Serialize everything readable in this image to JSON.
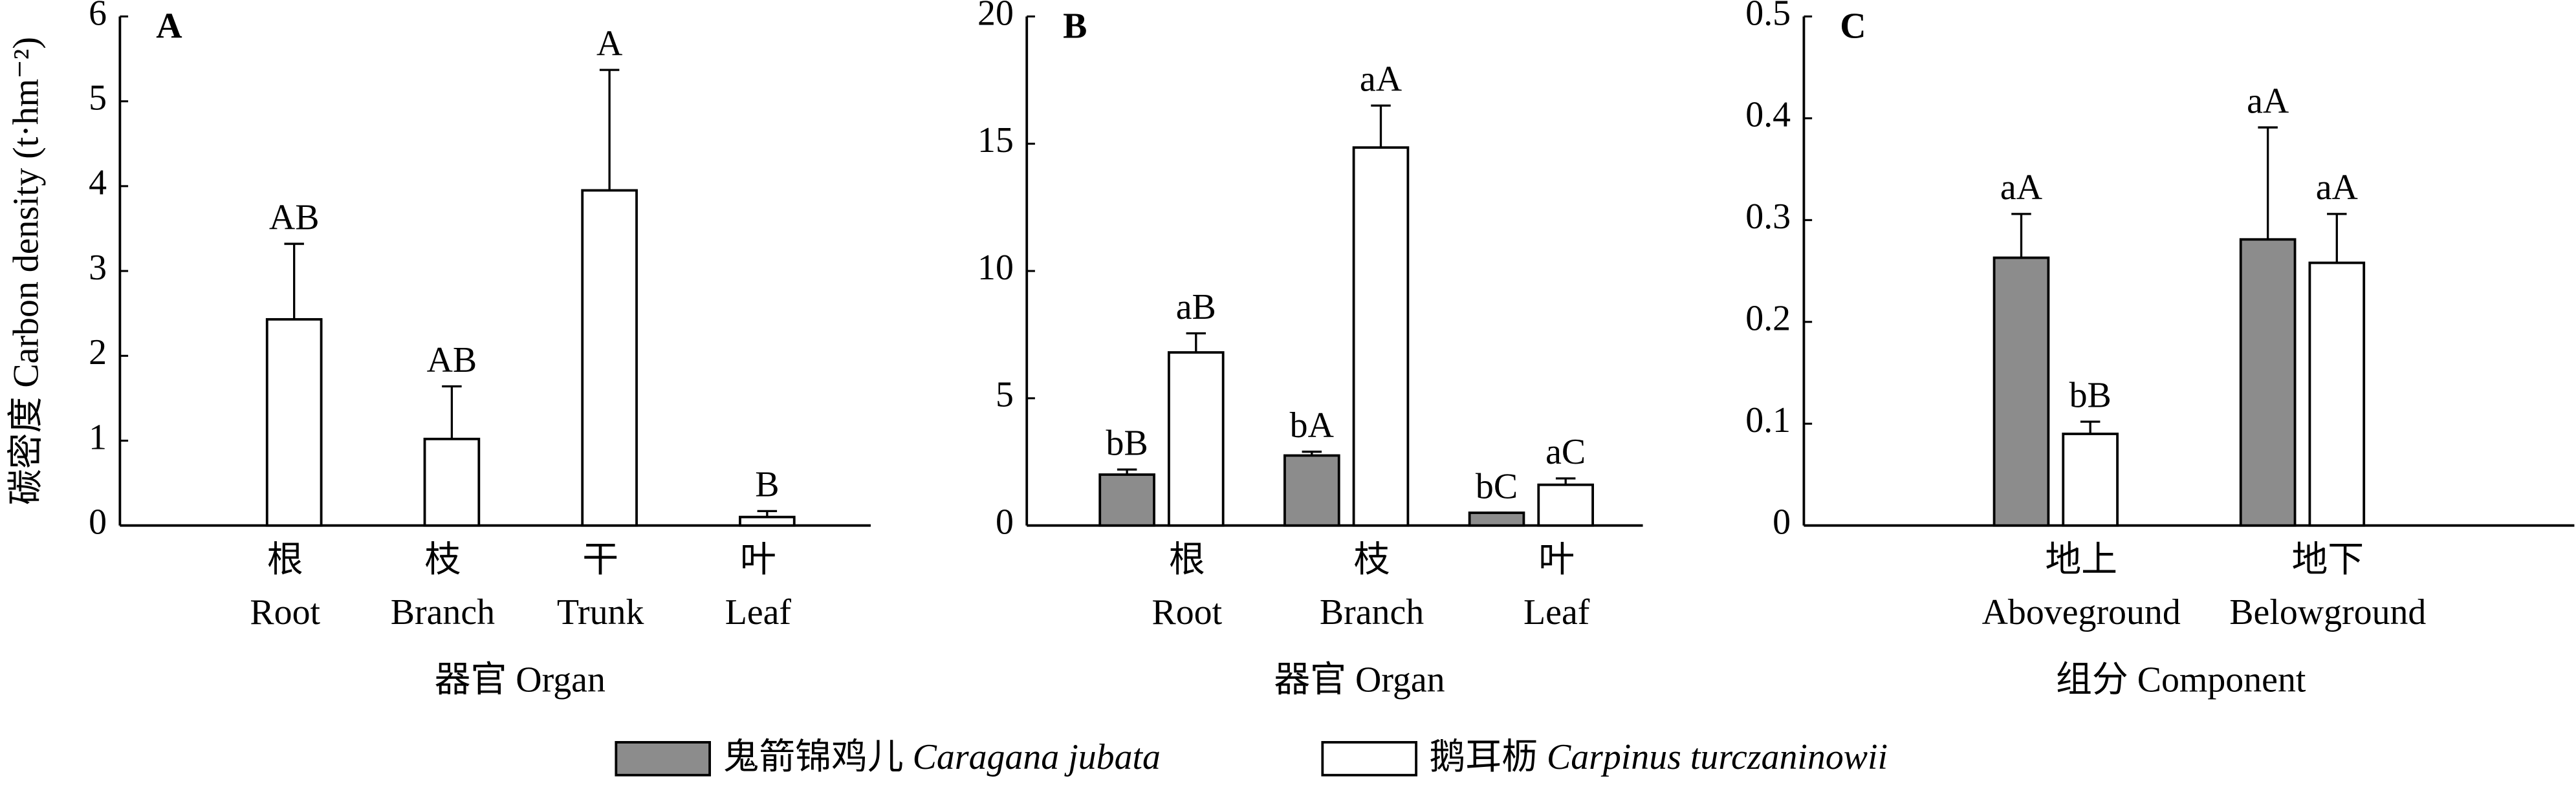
{
  "chart_data": [
    {
      "type": "bar",
      "panel": "A",
      "ylabel": "碳密度 Carbon density (t·hm⁻²)",
      "xlabel": "器官 Organ",
      "categories": [
        [
          "根",
          "Root"
        ],
        [
          "枝",
          "Branch"
        ],
        [
          "干",
          "Trunk"
        ],
        [
          "叶",
          "Leaf"
        ]
      ],
      "series": [
        {
          "color": "#8c8c8c",
          "values": [
            null,
            null,
            null,
            null
          ],
          "errors": [
            null,
            null,
            null,
            null
          ],
          "value_labels": [
            null,
            null,
            null,
            null
          ]
        },
        {
          "color": "#ffffff",
          "values": [
            2.43,
            1.02,
            3.95,
            0.1
          ],
          "errors": [
            0.89,
            0.62,
            1.42,
            0.07
          ],
          "value_labels": [
            "AB",
            "AB",
            "A",
            "B"
          ]
        }
      ],
      "ylim": [
        0,
        6
      ],
      "yticks": [
        0,
        1,
        2,
        3,
        4,
        5,
        6
      ]
    },
    {
      "type": "bar",
      "panel": "B",
      "xlabel": "器官 Organ",
      "categories": [
        [
          "根",
          "Root"
        ],
        [
          "枝",
          "Branch"
        ],
        [
          "叶",
          "Leaf"
        ]
      ],
      "series": [
        {
          "color": "#8c8c8c",
          "values": [
            2.0,
            2.75,
            0.5
          ],
          "errors": [
            0.2,
            0.15,
            0.0
          ],
          "value_labels": [
            "bB",
            "bA",
            "bC"
          ]
        },
        {
          "color": "#ffffff",
          "values": [
            6.8,
            14.85,
            1.6
          ],
          "errors": [
            0.75,
            1.65,
            0.25
          ],
          "value_labels": [
            "aB",
            "aA",
            "aC"
          ]
        }
      ],
      "ylim": [
        0,
        20
      ],
      "yticks": [
        0,
        5,
        10,
        15,
        20
      ]
    },
    {
      "type": "bar",
      "panel": "C",
      "xlabel": "组分 Component",
      "categories": [
        [
          "地上",
          "Aboveground"
        ],
        [
          "地下",
          "Belowground"
        ]
      ],
      "series": [
        {
          "color": "#8c8c8c",
          "values": [
            0.263,
            0.281
          ],
          "errors": [
            0.043,
            0.11
          ],
          "value_labels": [
            "aA",
            "aA"
          ]
        },
        {
          "color": "#ffffff",
          "values": [
            0.09,
            0.258
          ],
          "errors": [
            0.012,
            0.048
          ],
          "value_labels": [
            "bB",
            "aA"
          ]
        }
      ],
      "ylim": [
        0,
        0.5
      ],
      "yticks": [
        0,
        0.1,
        0.2,
        0.3,
        0.4,
        0.5
      ]
    }
  ],
  "legend": [
    {
      "name": "鬼箭锦鸡儿 Caragana jubata",
      "color": "#8c8c8c"
    },
    {
      "name": "鹅耳枥 Carpinus turczaninowii",
      "color": "#ffffff"
    }
  ]
}
